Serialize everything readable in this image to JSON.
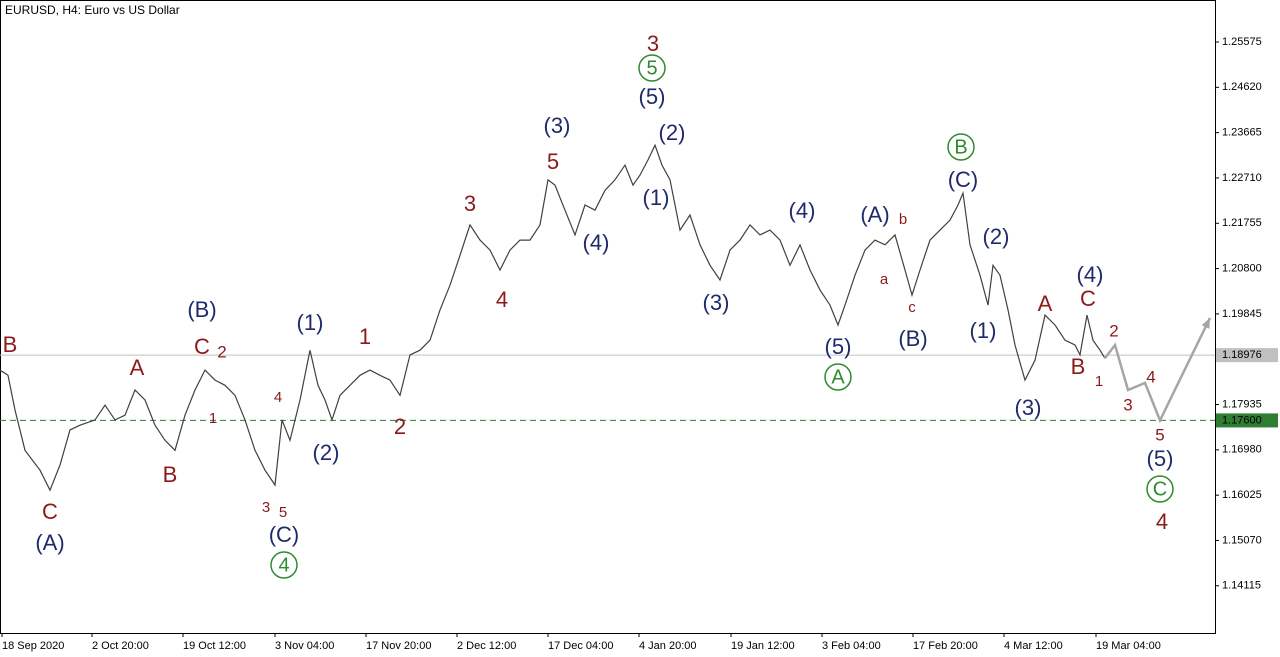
{
  "chart_data": {
    "type": "line",
    "title": "EURUSD, H4:  Euro vs US Dollar",
    "x": [
      0,
      8,
      15,
      25,
      40,
      50,
      60,
      70,
      80,
      95,
      105,
      115,
      125,
      135,
      145,
      155,
      165,
      175,
      185,
      195,
      205,
      215,
      225,
      235,
      245,
      255,
      265,
      275,
      282,
      290,
      300,
      310,
      318,
      325,
      332,
      340,
      350,
      360,
      370,
      380,
      390,
      400,
      410,
      420,
      430,
      440,
      450,
      460,
      470,
      480,
      490,
      500,
      510,
      520,
      530,
      540,
      548,
      555,
      565,
      575,
      585,
      595,
      605,
      615,
      625,
      633,
      640,
      648,
      655,
      662,
      670,
      680,
      690,
      700,
      710,
      720,
      730,
      740,
      750,
      760,
      770,
      780,
      790,
      800,
      810,
      820,
      830,
      838,
      845,
      855,
      865,
      875,
      885,
      895,
      905,
      912,
      920,
      930,
      940,
      950,
      958,
      963,
      970,
      980,
      988,
      993,
      1000,
      1008,
      1015,
      1025,
      1035,
      1045,
      1055,
      1065,
      1075,
      1080,
      1087,
      1093,
      1100,
      1105
    ],
    "series": [
      {
        "color": "#404040",
        "values": [
          1.1866,
          1.1855,
          1.1782,
          1.1697,
          1.1655,
          1.1613,
          1.1666,
          1.174,
          1.175,
          1.1761,
          1.1792,
          1.1761,
          1.1771,
          1.1824,
          1.1803,
          1.175,
          1.1718,
          1.1697,
          1.1771,
          1.1824,
          1.1866,
          1.1845,
          1.1834,
          1.1813,
          1.1761,
          1.1697,
          1.1655,
          1.1624,
          1.1761,
          1.1718,
          1.1803,
          1.1908,
          1.1834,
          1.1803,
          1.1761,
          1.1813,
          1.1834,
          1.1855,
          1.1866,
          1.1855,
          1.1845,
          1.1813,
          1.1898,
          1.1908,
          1.1929,
          1.1993,
          1.2045,
          1.2108,
          1.2172,
          1.214,
          1.2119,
          1.2077,
          1.2119,
          1.214,
          1.214,
          1.2172,
          1.2267,
          1.2256,
          1.2203,
          1.2151,
          1.2214,
          1.2203,
          1.2245,
          1.2267,
          1.2298,
          1.2256,
          1.2277,
          1.2309,
          1.234,
          1.2298,
          1.2267,
          1.2161,
          1.2193,
          1.213,
          1.2087,
          1.2056,
          1.2119,
          1.214,
          1.2172,
          1.2151,
          1.2161,
          1.214,
          1.2087,
          1.213,
          1.2077,
          1.2035,
          1.2003,
          1.1961,
          1.2003,
          1.2066,
          1.2119,
          1.214,
          1.213,
          1.2151,
          1.2077,
          1.2024,
          1.2077,
          1.214,
          1.2161,
          1.2182,
          1.2214,
          1.2239,
          1.213,
          1.2066,
          1.2003,
          1.2087,
          1.2066,
          1.1993,
          1.1919,
          1.1845,
          1.1887,
          1.1982,
          1.1961,
          1.1929,
          1.1919,
          1.1898,
          1.1982,
          1.1929,
          1.1908,
          1.1891
        ]
      }
    ],
    "projection": {
      "color": "#a6a6a6",
      "x": [
        1105,
        1115,
        1128,
        1145,
        1160,
        1210
      ],
      "values": [
        1.1891,
        1.1919,
        1.1824,
        1.1839,
        1.176,
        1.1976
      ]
    },
    "xlim": [
      0,
      1215
    ],
    "ylim": [
      1.1312,
      1.2646
    ],
    "xticks": [
      {
        "value": 2,
        "label": "18 Sep 2020"
      },
      {
        "value": 92,
        "label": "2 Oct 20:00"
      },
      {
        "value": 183,
        "label": "19 Oct 12:00"
      },
      {
        "value": 275,
        "label": "3 Nov 04:00"
      },
      {
        "value": 366,
        "label": "17 Nov 20:00"
      },
      {
        "value": 457,
        "label": "2 Dec 12:00"
      },
      {
        "value": 548,
        "label": "17 Dec 04:00"
      },
      {
        "value": 639,
        "label": "4 Jan 20:00"
      },
      {
        "value": 731,
        "label": "19 Jan 12:00"
      },
      {
        "value": 822,
        "label": "3 Feb 04:00"
      },
      {
        "value": 913,
        "label": "17 Feb 20:00"
      },
      {
        "value": 1004,
        "label": "4 Mar 12:00"
      },
      {
        "value": 1096,
        "label": "19 Mar 04:00"
      }
    ],
    "yticks": [
      1.25575,
      {
        "value": 1.2462,
        "label": "1.24620"
      },
      1.23665,
      {
        "value": 1.2271,
        "label": "1.22710"
      },
      1.21755,
      {
        "value": 1.208,
        "label": "1.20800"
      },
      1.19845,
      1.17935,
      {
        "value": 1.1698,
        "label": "1.16980"
      },
      1.16025,
      {
        "value": 1.1507,
        "label": "1.15070"
      },
      1.14115
    ],
    "hlines": [
      {
        "value": 1.18976,
        "label": "1.18976",
        "color": "#c0c0c0",
        "style": "solid"
      },
      {
        "value": 1.176,
        "label": "1.17600",
        "color": "#2e7d32",
        "style": "dashed"
      }
    ],
    "annotations": [
      {
        "text": "B",
        "color": "#8b1a1a"
      },
      {
        "text": "C",
        "color": "#8b1a1a"
      },
      {
        "text": "(A)",
        "color": "#1f2a6b"
      },
      {
        "text": "A",
        "color": "#8b1a1a"
      },
      {
        "text": "B",
        "color": "#8b1a1a"
      },
      {
        "text": "(B)",
        "color": "#1f2a6b"
      },
      {
        "text": "C",
        "color": "#8b1a1a"
      },
      {
        "text": "2",
        "color": "#8b1a1a"
      },
      {
        "text": "1",
        "color": "#8b1a1a"
      },
      {
        "text": "4",
        "color": "#8b1a1a"
      },
      {
        "text": "3",
        "color": "#8b1a1a"
      },
      {
        "text": "5",
        "color": "#8b1a1a"
      },
      {
        "text": "(C)",
        "color": "#1f2a6b"
      },
      {
        "text": "4",
        "color": "#2e8b2e",
        "circled": true
      },
      {
        "text": "(1)",
        "color": "#1f2a6b"
      },
      {
        "text": "(2)",
        "color": "#1f2a6b"
      },
      {
        "text": "1",
        "color": "#8b1a1a"
      },
      {
        "text": "2",
        "color": "#8b1a1a"
      },
      {
        "text": "3",
        "color": "#8b1a1a"
      },
      {
        "text": "4",
        "color": "#8b1a1a"
      },
      {
        "text": "5",
        "color": "#8b1a1a"
      },
      {
        "text": "(3)",
        "color": "#1f2a6b"
      },
      {
        "text": "3",
        "color": "#8b1a1a"
      },
      {
        "text": "5",
        "color": "#2e8b2e",
        "circled": true
      },
      {
        "text": "(5)",
        "color": "#1f2a6b"
      },
      {
        "text": "(2)",
        "color": "#1f2a6b"
      },
      {
        "text": "(1)",
        "color": "#1f2a6b"
      },
      {
        "text": "(4)",
        "color": "#1f2a6b"
      },
      {
        "text": "(3)",
        "color": "#1f2a6b"
      },
      {
        "text": "(4)",
        "color": "#1f2a6b"
      },
      {
        "text": "(5)",
        "color": "#1f2a6b"
      },
      {
        "text": "A",
        "color": "#2e8b2e",
        "circled": true
      },
      {
        "text": "(A)",
        "color": "#1f2a6b"
      },
      {
        "text": "b",
        "color": "#8b1a1a"
      },
      {
        "text": "a",
        "color": "#8b1a1a"
      },
      {
        "text": "c",
        "color": "#8b1a1a"
      },
      {
        "text": "(B)",
        "color": "#1f2a6b"
      },
      {
        "text": "B",
        "color": "#2e8b2e",
        "circled": true
      },
      {
        "text": "(C)",
        "color": "#1f2a6b"
      },
      {
        "text": "(2)",
        "color": "#1f2a6b"
      },
      {
        "text": "(1)",
        "color": "#1f2a6b"
      },
      {
        "text": "A",
        "color": "#8b1a1a"
      },
      {
        "text": "(3)",
        "color": "#1f2a6b"
      },
      {
        "text": "(4)",
        "color": "#1f2a6b"
      },
      {
        "text": "C",
        "color": "#8b1a1a"
      },
      {
        "text": "B",
        "color": "#8b1a1a"
      },
      {
        "text": "1",
        "color": "#8b1a1a"
      },
      {
        "text": "2",
        "color": "#8b1a1a"
      },
      {
        "text": "3",
        "color": "#8b1a1a"
      },
      {
        "text": "4",
        "color": "#8b1a1a"
      },
      {
        "text": "5",
        "color": "#8b1a1a"
      },
      {
        "text": "(5)",
        "color": "#1f2a6b"
      },
      {
        "text": "C",
        "color": "#2e8b2e",
        "circled": true
      },
      {
        "text": "4",
        "color": "#8b1a1a"
      }
    ]
  }
}
